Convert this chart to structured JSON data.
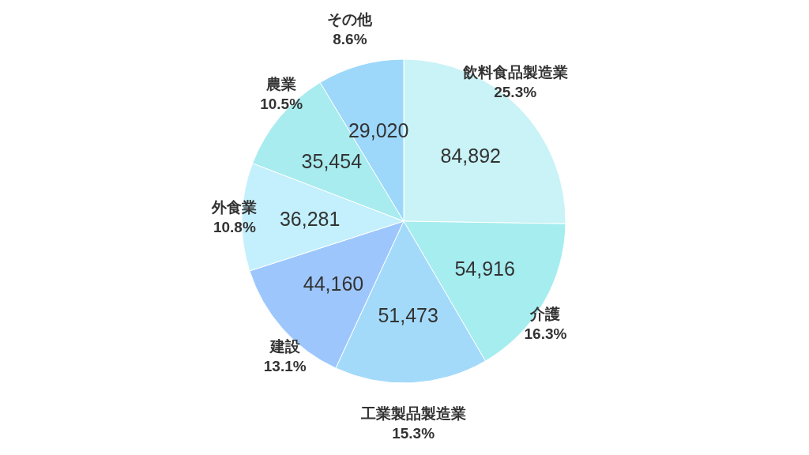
{
  "chart_data": {
    "type": "pie",
    "categories": [
      "飲料食品製造業",
      "介護",
      "工業製品製造業",
      "建設",
      "外食業",
      "農業",
      "その他"
    ],
    "values": [
      84892,
      54916,
      51473,
      44160,
      36281,
      35454,
      29020
    ],
    "value_labels": [
      "84,892",
      "54,916",
      "51,473",
      "44,160",
      "36,281",
      "35,454",
      "29,020"
    ],
    "annotations": [
      "25.3%",
      "16.3%",
      "15.3%",
      "13.1%",
      "10.8%",
      "10.5%",
      "8.6%"
    ],
    "colors": [
      "#c9f3f6",
      "#a6edf0",
      "#a3dafa",
      "#9dc7fc",
      "#c3f0fc",
      "#a8ecef",
      "#9dd8fb"
    ]
  }
}
